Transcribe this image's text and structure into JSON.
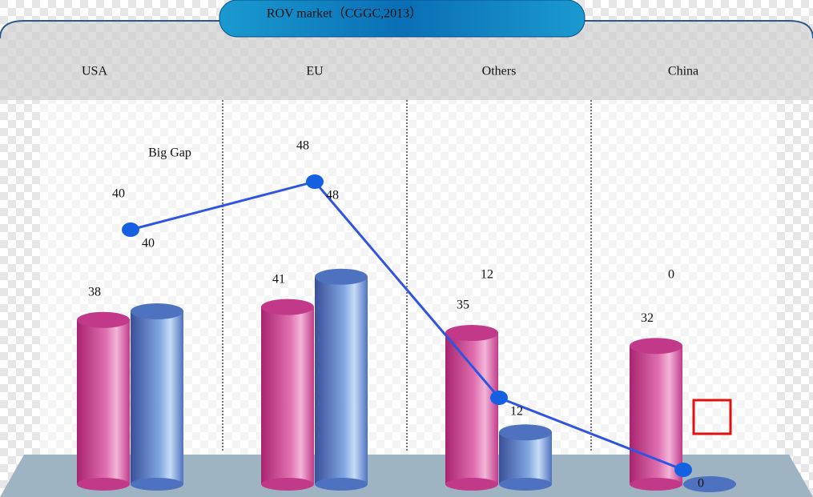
{
  "chart_data": {
    "type": "bar",
    "title": "ROV market（CGGC,2013）",
    "categories": [
      "USA",
      "EU",
      "Others",
      "China"
    ],
    "series": [
      {
        "color": "#c2398a",
        "values": [
          38,
          41,
          35,
          32
        ]
      },
      {
        "color": "#4f72c0",
        "values": [
          40,
          48,
          12,
          0
        ]
      },
      {
        "type": "line",
        "color": "#2f55e0",
        "values": [
          40,
          48,
          12,
          0
        ]
      }
    ],
    "annotation": "Big Gap"
  }
}
